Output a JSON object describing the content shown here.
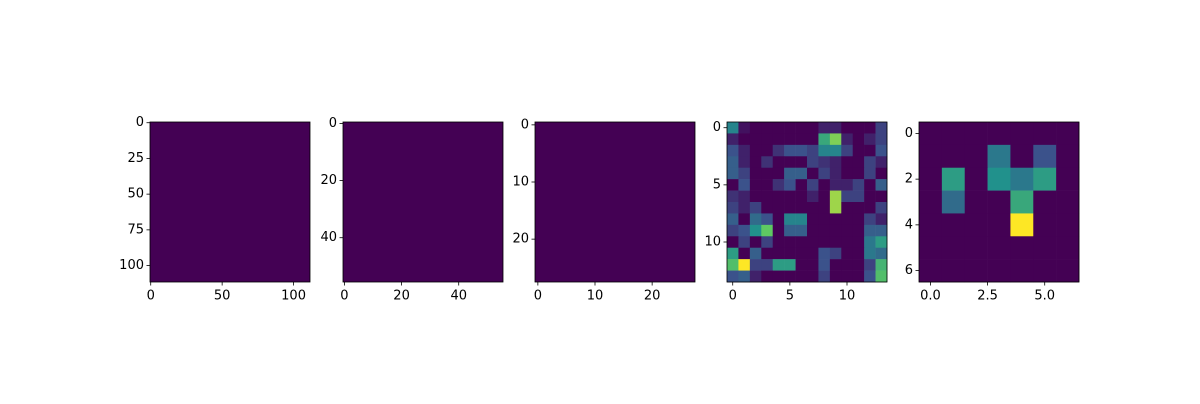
{
  "chart_data": [
    {
      "type": "image",
      "color": "#440154",
      "xlim": [
        -0.5,
        111.5
      ],
      "ylim": [
        111.5,
        -0.5
      ],
      "xticks": [
        0,
        50,
        100
      ],
      "yticks": [
        0,
        25,
        50,
        75,
        100
      ]
    },
    {
      "type": "image",
      "color": "#440154",
      "xlim": [
        -0.5,
        55.5
      ],
      "ylim": [
        55.5,
        -0.5
      ],
      "xticks": [
        0,
        20,
        40
      ],
      "yticks": [
        0,
        20,
        40
      ]
    },
    {
      "type": "image",
      "color": "#440154",
      "xlim": [
        -0.5,
        27.5
      ],
      "ylim": [
        27.5,
        -0.5
      ],
      "xticks": [
        0,
        10,
        20
      ],
      "yticks": [
        0,
        10,
        20
      ]
    },
    {
      "type": "heatmap",
      "xlim": [
        -0.5,
        13.5
      ],
      "ylim": [
        13.5,
        -0.5
      ],
      "xticks": [
        0,
        5,
        10
      ],
      "yticks": [
        0,
        5,
        10
      ],
      "values": [
        [
          0.45,
          0.05,
          0,
          0,
          0,
          0,
          0,
          0,
          0.1,
          0.1,
          0,
          0,
          0,
          0.2
        ],
        [
          0.1,
          0,
          0,
          0,
          0,
          0,
          0,
          0,
          0.6,
          0.8,
          0.1,
          0,
          0.1,
          0.2
        ],
        [
          0.25,
          0.1,
          0,
          0,
          0.15,
          0.25,
          0.25,
          0.2,
          0.45,
          0.45,
          0.2,
          0,
          0,
          0.25
        ],
        [
          0.3,
          0.1,
          0,
          0.15,
          0,
          0,
          0,
          0.2,
          0.15,
          0.1,
          0,
          0,
          0.2,
          0.1
        ],
        [
          0.3,
          0.2,
          0,
          0,
          0,
          0.3,
          0.3,
          0,
          0.2,
          0.1,
          0,
          0,
          0.2,
          0
        ],
        [
          0,
          0.25,
          0,
          0,
          0.15,
          0.25,
          0,
          0.2,
          0,
          0.1,
          0.1,
          0.2,
          0,
          0.3
        ],
        [
          0.15,
          0.1,
          0,
          0,
          0,
          0,
          0,
          0.1,
          0,
          0.85,
          0.2,
          0.2,
          0,
          0
        ],
        [
          0.2,
          0.1,
          0.2,
          0,
          0,
          0,
          0,
          0,
          0,
          0.85,
          0,
          0,
          0,
          0.2
        ],
        [
          0.3,
          0,
          0.35,
          0.25,
          0,
          0.45,
          0.45,
          0,
          0,
          0,
          0,
          0,
          0.2,
          0.1
        ],
        [
          0.2,
          0.25,
          0.5,
          0.75,
          0,
          0.3,
          0.3,
          0,
          0,
          0,
          0,
          0,
          0.3,
          0.3
        ],
        [
          0,
          0.2,
          0,
          0.2,
          0,
          0,
          0,
          0,
          0,
          0,
          0,
          0,
          0.4,
          0.55
        ],
        [
          0.55,
          0,
          0.3,
          0,
          0,
          0,
          0,
          0,
          0.25,
          0.2,
          0,
          0,
          0.4,
          0.35
        ],
        [
          0.7,
          1,
          0.2,
          0.2,
          0.55,
          0.55,
          0,
          0,
          0.25,
          0,
          0,
          0,
          0.2,
          0.65
        ],
        [
          0.25,
          0.3,
          0.1,
          0,
          0,
          0,
          0,
          0,
          0.2,
          0,
          0,
          0,
          0.25,
          0.7
        ]
      ]
    },
    {
      "type": "heatmap",
      "xlim": [
        -0.5,
        6.5
      ],
      "ylim": [
        6.5,
        -0.5
      ],
      "xticks": [
        {
          "value": 0,
          "label": "0.0"
        },
        {
          "value": 2.5,
          "label": "2.5"
        },
        {
          "value": 5,
          "label": "5.0"
        }
      ],
      "yticks": [
        0,
        2,
        4,
        6
      ],
      "values": [
        [
          0,
          0,
          0,
          0,
          0,
          0,
          0
        ],
        [
          0,
          0,
          0,
          0.4,
          0,
          0.25,
          0
        ],
        [
          0,
          0.55,
          0,
          0.5,
          0.4,
          0.55,
          0
        ],
        [
          0,
          0.35,
          0,
          0,
          0.6,
          0,
          0
        ],
        [
          0,
          0,
          0,
          0,
          1,
          0,
          0
        ],
        [
          0,
          0,
          0,
          0,
          0,
          0,
          0
        ],
        [
          0,
          0,
          0,
          0,
          0,
          0,
          0
        ]
      ]
    }
  ]
}
